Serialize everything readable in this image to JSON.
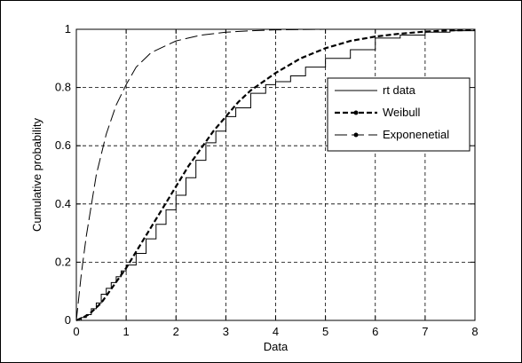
{
  "chart_data": {
    "type": "line",
    "title": "",
    "xlabel": "Data",
    "ylabel": "Cumulative probability",
    "xlim": [
      0,
      8
    ],
    "ylim": [
      0,
      1
    ],
    "grid": true,
    "legend_position": "upper-right",
    "x_ticks": [
      "0",
      "1",
      "2",
      "3",
      "4",
      "5",
      "6",
      "7",
      "8"
    ],
    "y_ticks": [
      "0",
      "0.2",
      "0.4",
      "0.6",
      "0.8",
      "1"
    ],
    "series": [
      {
        "name": "rt data",
        "style": "solid-thin-step",
        "x": [
          0,
          0.1,
          0.2,
          0.3,
          0.4,
          0.5,
          0.6,
          0.7,
          0.8,
          0.9,
          1.0,
          1.2,
          1.4,
          1.6,
          1.8,
          2.0,
          2.2,
          2.4,
          2.6,
          2.8,
          3.0,
          3.2,
          3.5,
          3.8,
          4.0,
          4.3,
          4.6,
          5.0,
          5.5,
          6.0,
          6.5,
          7.0,
          7.5,
          8.0
        ],
        "y": [
          0,
          0.01,
          0.02,
          0.04,
          0.06,
          0.09,
          0.11,
          0.13,
          0.15,
          0.17,
          0.19,
          0.23,
          0.28,
          0.33,
          0.38,
          0.43,
          0.49,
          0.55,
          0.61,
          0.65,
          0.7,
          0.73,
          0.78,
          0.81,
          0.82,
          0.84,
          0.87,
          0.9,
          0.93,
          0.97,
          0.98,
          0.99,
          0.995,
          1.0
        ]
      },
      {
        "name": "Weibull",
        "style": "dashed-thick",
        "x": [
          0,
          0.25,
          0.5,
          0.75,
          1.0,
          1.25,
          1.5,
          1.75,
          2.0,
          2.25,
          2.5,
          2.75,
          3.0,
          3.25,
          3.5,
          3.75,
          4.0,
          4.5,
          5.0,
          5.5,
          6.0,
          6.5,
          7.0,
          7.5,
          8.0
        ],
        "y": [
          0,
          0.02,
          0.06,
          0.12,
          0.18,
          0.25,
          0.32,
          0.39,
          0.46,
          0.53,
          0.59,
          0.65,
          0.7,
          0.75,
          0.79,
          0.82,
          0.85,
          0.9,
          0.935,
          0.96,
          0.975,
          0.985,
          0.992,
          0.996,
          0.998
        ]
      },
      {
        "name": "Exponenetial",
        "style": "long-dash-thin",
        "x": [
          0,
          0.1,
          0.2,
          0.4,
          0.6,
          0.8,
          1.0,
          1.2,
          1.5,
          2.0,
          2.5,
          3.0,
          3.5,
          4.0,
          5.0,
          6.0,
          7.0,
          8.0
        ],
        "y": [
          0,
          0.16,
          0.29,
          0.5,
          0.64,
          0.74,
          0.81,
          0.87,
          0.92,
          0.96,
          0.98,
          0.99,
          0.995,
          0.998,
          1.0,
          1.0,
          1.0,
          1.0
        ]
      }
    ]
  }
}
